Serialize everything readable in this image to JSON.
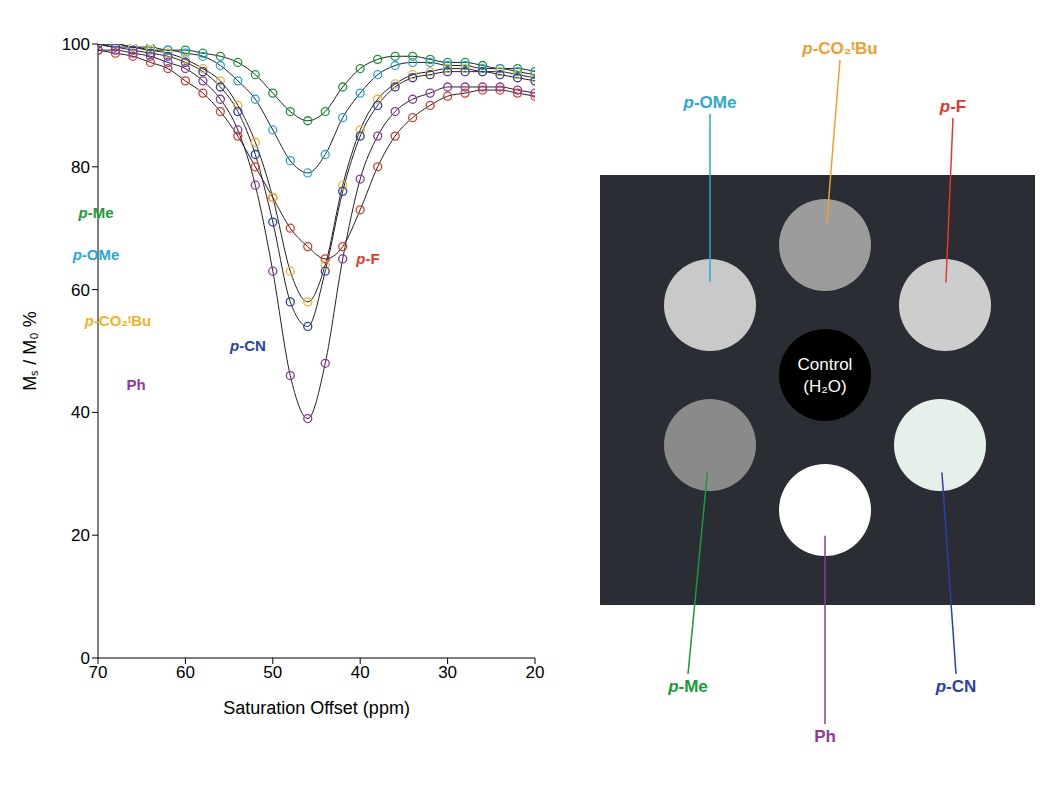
{
  "chart_data": {
    "type": "line",
    "x_label": "Saturation Offset (ppm)",
    "y_label": "Mₛ / M₀ %",
    "xlim": [
      70,
      20
    ],
    "xticks": [
      70,
      60,
      50,
      40,
      30,
      20
    ],
    "ylim": [
      0,
      100
    ],
    "yticks": [
      0,
      20,
      40,
      60,
      80,
      100
    ],
    "grid": false,
    "x": [
      70,
      68,
      66,
      64,
      62,
      60,
      58,
      56,
      54,
      52,
      50,
      48,
      46,
      44,
      42,
      40,
      38,
      36,
      34,
      32,
      30,
      28,
      26,
      24,
      22,
      20
    ],
    "series": [
      {
        "name": "p-Me",
        "color": "#1a9a3a",
        "marker": "circle",
        "line_style": "solid",
        "values": [
          100,
          100,
          99.5,
          99.5,
          99,
          99,
          98.5,
          98,
          97,
          95,
          92,
          89,
          87.5,
          89,
          93,
          96,
          97.5,
          98,
          98,
          97.5,
          97,
          97,
          96.5,
          96,
          96,
          95.5
        ]
      },
      {
        "name": "p-OMe",
        "color": "#29a9d6",
        "marker": "circle",
        "line_style": "solid",
        "values": [
          100,
          100,
          99.5,
          99,
          99,
          98.5,
          98,
          96.5,
          94,
          91,
          86,
          81,
          79,
          82,
          88,
          92,
          95,
          96.5,
          97,
          97,
          96.5,
          96.5,
          96,
          96,
          95.5,
          95
        ]
      },
      {
        "name": "p-F",
        "color": "#e0392b",
        "marker": "circle",
        "line_style": "solid",
        "values": [
          99,
          98.5,
          98,
          97,
          96,
          94,
          92,
          89,
          85,
          80,
          75,
          70,
          67,
          65,
          67,
          73,
          80,
          85,
          88,
          90,
          91.5,
          92,
          92.5,
          92.5,
          92,
          91.5
        ]
      },
      {
        "name": "p-CO₂ᵗBu",
        "color": "#f0b428",
        "marker": "circle",
        "line_style": "solid",
        "values": [
          100,
          99.5,
          99.5,
          99,
          98.5,
          97.5,
          96,
          94,
          90,
          84,
          75,
          63,
          58,
          64,
          77,
          86,
          91,
          93.5,
          95,
          95.5,
          96,
          96,
          95.5,
          95.5,
          95,
          94.5
        ]
      },
      {
        "name": "p-CN",
        "color": "#2b3fae",
        "marker": "circle",
        "line_style": "solid",
        "values": [
          100,
          99.5,
          99,
          98.5,
          98,
          97,
          95.5,
          93,
          89,
          82,
          71,
          58,
          54,
          63,
          76,
          85,
          90,
          93,
          94.5,
          95,
          95.5,
          95.5,
          95.5,
          95,
          94.5,
          94
        ]
      },
      {
        "name": "Ph",
        "color": "#8e3a9a",
        "marker": "circle",
        "line_style": "solid",
        "values": [
          99,
          99,
          98.5,
          98,
          97,
          96,
          94,
          91,
          86,
          77,
          63,
          46,
          39,
          48,
          65,
          78,
          85,
          89,
          91,
          92,
          93,
          93,
          93,
          93,
          92.5,
          92
        ]
      }
    ]
  },
  "phantom": {
    "samples": [
      {
        "name": "p-OMe",
        "color": "#c9c9c9",
        "label_color": "#29a9d6"
      },
      {
        "name": "p-CO₂ᵗBu",
        "color": "#9c9c9c",
        "label_color": "#f0a030"
      },
      {
        "name": "p-F",
        "color": "#cdcdcd",
        "label_color": "#e0392b"
      },
      {
        "name": "p-Me",
        "color": "#8a8a8a",
        "label_color": "#1a9a3a"
      },
      {
        "name": "Ph",
        "color": "#ffffff",
        "label_color": "#8e3a9a"
      },
      {
        "name": "p-CN",
        "color": "#e6f0ea",
        "label_color": "#2b3fae"
      }
    ],
    "control": [
      "Control",
      "(H₂O)"
    ],
    "control_color": "#000000",
    "background": "#2a2d33"
  }
}
